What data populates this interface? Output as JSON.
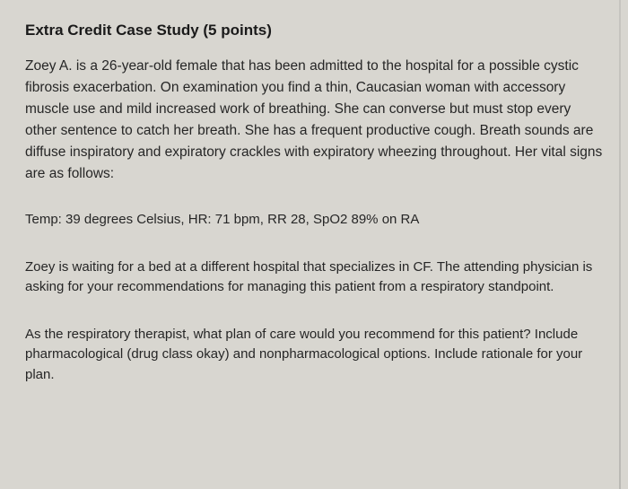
{
  "document": {
    "title": "Extra Credit Case Study (5 points)",
    "case_description": "Zoey A. is a 26-year-old female that has been admitted to the hospital for a possible cystic fibrosis exacerbation. On examination you find a thin, Caucasian woman with accessory muscle use and mild increased work of breathing. She can converse but must stop every other sentence to catch her breath. She has a frequent productive cough. Breath sounds are diffuse inspiratory and expiratory crackles with expiratory wheezing throughout. Her vital signs are as follows:",
    "vitals": "Temp: 39 degrees Celsius, HR: 71 bpm, RR 28, SpO2 89% on RA",
    "context": "Zoey is waiting for a bed at a different hospital that specializes in CF. The attending physician is asking for your recommendations for managing this patient from a respiratory standpoint.",
    "question": "As the respiratory therapist, what plan of care would you recommend for this patient? Include pharmacological (drug class okay) and nonpharmacological options. Include rationale for your plan."
  },
  "style": {
    "background_color": "#d8d6d0",
    "text_color": "#2a2a2a",
    "title_fontsize": 17,
    "body_fontsize": 15.5,
    "font_family": "Arial, Helvetica, sans-serif",
    "line_height": 1.55
  }
}
